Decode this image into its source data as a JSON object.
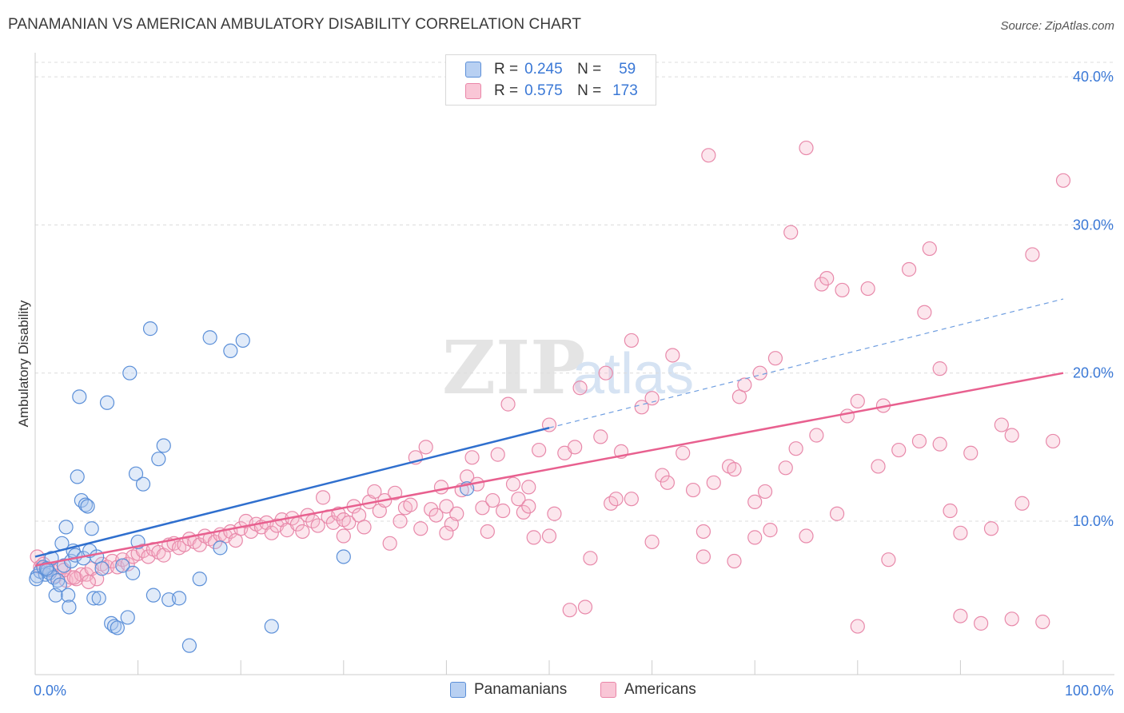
{
  "title": "PANAMANIAN VS AMERICAN AMBULATORY DISABILITY CORRELATION CHART",
  "source": "Source: ZipAtlas.com",
  "colors": {
    "blue": "#3a78d6",
    "blue_fill": "#a9c6ef",
    "pink": "#e8608f",
    "pink_fill": "#f7b8cc",
    "grid": "#dddddd"
  },
  "legend": {
    "rows": [
      {
        "r_label": "R =",
        "r_value": "0.245",
        "n_label": "N =",
        "n_value": "59"
      },
      {
        "r_label": "R =",
        "r_value": "0.575",
        "n_label": "N =",
        "n_value": "173"
      }
    ]
  },
  "bottom_legend": {
    "panamanians": "Panamanians",
    "americans": "Americans"
  },
  "chart_data": {
    "type": "scatter",
    "title": "PANAMANIAN VS AMERICAN AMBULATORY DISABILITY CORRELATION CHART",
    "xlabel": "",
    "ylabel": "Ambulatory Disability",
    "xlim": [
      0,
      100
    ],
    "ylim": [
      0,
      42
    ],
    "x_tick_labels": [
      "0.0%",
      "100.0%"
    ],
    "y_ticks": [
      10,
      20,
      30,
      40
    ],
    "y_tick_labels": [
      "10.0%",
      "20.0%",
      "30.0%",
      "40.0%"
    ],
    "watermark": "ZIPatlas",
    "series": [
      {
        "name": "Panamanians",
        "color": "#3a78d6",
        "r": 0.245,
        "n": 59,
        "trend": {
          "x0": 0,
          "y0": 7.6,
          "x1": 50,
          "y1": 16.3,
          "dashed_to_x": 100,
          "dashed_to_y": 25.0
        },
        "points": [
          [
            0.2,
            6.3
          ],
          [
            0.5,
            6.6
          ],
          [
            0.8,
            6.9
          ],
          [
            1.0,
            6.4
          ],
          [
            1.2,
            6.7
          ],
          [
            1.4,
            6.5
          ],
          [
            1.6,
            7.5
          ],
          [
            1.8,
            6.2
          ],
          [
            2.0,
            5.0
          ],
          [
            2.2,
            6.0
          ],
          [
            2.4,
            5.7
          ],
          [
            2.6,
            8.5
          ],
          [
            2.8,
            7.0
          ],
          [
            3.0,
            9.6
          ],
          [
            3.2,
            5.0
          ],
          [
            3.3,
            4.2
          ],
          [
            3.5,
            7.3
          ],
          [
            3.7,
            8.0
          ],
          [
            3.9,
            7.7
          ],
          [
            4.1,
            13.0
          ],
          [
            4.3,
            18.4
          ],
          [
            4.5,
            11.4
          ],
          [
            4.7,
            7.5
          ],
          [
            4.9,
            11.1
          ],
          [
            5.1,
            11.0
          ],
          [
            5.3,
            8.0
          ],
          [
            5.5,
            9.5
          ],
          [
            5.7,
            4.8
          ],
          [
            6.0,
            7.6
          ],
          [
            6.2,
            4.8
          ],
          [
            6.5,
            6.8
          ],
          [
            7.0,
            18.0
          ],
          [
            7.4,
            3.1
          ],
          [
            7.7,
            2.9
          ],
          [
            8.0,
            2.8
          ],
          [
            8.5,
            7.0
          ],
          [
            9.0,
            3.5
          ],
          [
            9.2,
            20.0
          ],
          [
            9.5,
            6.5
          ],
          [
            9.8,
            13.2
          ],
          [
            10.0,
            8.6
          ],
          [
            10.5,
            12.5
          ],
          [
            11.2,
            23.0
          ],
          [
            11.5,
            5.0
          ],
          [
            12.0,
            14.2
          ],
          [
            12.5,
            15.1
          ],
          [
            13.0,
            4.7
          ],
          [
            14.0,
            4.8
          ],
          [
            15.0,
            1.6
          ],
          [
            16.0,
            6.1
          ],
          [
            17.0,
            22.4
          ],
          [
            18.0,
            8.2
          ],
          [
            19.0,
            21.5
          ],
          [
            20.2,
            22.2
          ],
          [
            23.0,
            2.9
          ],
          [
            30.0,
            7.6
          ],
          [
            42.0,
            12.2
          ],
          [
            0.1,
            6.1
          ],
          [
            1.1,
            6.8
          ]
        ]
      },
      {
        "name": "Americans",
        "color": "#e8608f",
        "r": 0.575,
        "n": 173,
        "trend": {
          "x0": 0,
          "y0": 7.0,
          "x1": 100,
          "y1": 20.0
        },
        "points": [
          [
            0.2,
            7.6
          ],
          [
            0.5,
            6.9
          ],
          [
            0.8,
            7.1
          ],
          [
            1.2,
            6.8
          ],
          [
            1.6,
            6.7
          ],
          [
            2.0,
            6.3
          ],
          [
            2.5,
            6.9
          ],
          [
            3.0,
            6.0
          ],
          [
            3.5,
            6.2
          ],
          [
            4.0,
            6.1
          ],
          [
            4.5,
            6.4
          ],
          [
            5.0,
            6.4
          ],
          [
            5.5,
            6.8
          ],
          [
            6.0,
            6.1
          ],
          [
            6.5,
            7.1
          ],
          [
            7.0,
            6.9
          ],
          [
            7.5,
            7.3
          ],
          [
            8.0,
            6.9
          ],
          [
            8.5,
            7.4
          ],
          [
            9.0,
            7.1
          ],
          [
            9.5,
            7.6
          ],
          [
            10.0,
            7.8
          ],
          [
            10.5,
            8.0
          ],
          [
            11.0,
            7.6
          ],
          [
            11.5,
            8.1
          ],
          [
            12.0,
            7.9
          ],
          [
            12.5,
            7.7
          ],
          [
            13.0,
            8.4
          ],
          [
            13.5,
            8.5
          ],
          [
            14.0,
            8.2
          ],
          [
            14.5,
            8.4
          ],
          [
            15.0,
            8.8
          ],
          [
            15.5,
            8.6
          ],
          [
            16.0,
            8.4
          ],
          [
            16.5,
            9.0
          ],
          [
            17.0,
            8.8
          ],
          [
            17.5,
            8.6
          ],
          [
            18.0,
            9.1
          ],
          [
            18.5,
            9.0
          ],
          [
            19.0,
            9.3
          ],
          [
            19.5,
            8.7
          ],
          [
            20.0,
            9.5
          ],
          [
            20.5,
            10.0
          ],
          [
            21.0,
            9.3
          ],
          [
            21.5,
            9.8
          ],
          [
            22.0,
            9.6
          ],
          [
            22.5,
            9.9
          ],
          [
            23.0,
            9.2
          ],
          [
            23.5,
            9.7
          ],
          [
            24.0,
            10.1
          ],
          [
            24.5,
            9.4
          ],
          [
            25.0,
            10.2
          ],
          [
            25.5,
            9.8
          ],
          [
            26.0,
            9.3
          ],
          [
            26.5,
            10.4
          ],
          [
            27.0,
            10.0
          ],
          [
            27.5,
            9.7
          ],
          [
            28.0,
            11.6
          ],
          [
            28.5,
            10.3
          ],
          [
            29.0,
            9.9
          ],
          [
            29.5,
            10.5
          ],
          [
            30.0,
            10.1
          ],
          [
            30.5,
            9.9
          ],
          [
            31.0,
            11.0
          ],
          [
            31.5,
            10.4
          ],
          [
            32.0,
            9.6
          ],
          [
            32.5,
            11.3
          ],
          [
            33.0,
            12.0
          ],
          [
            33.5,
            10.7
          ],
          [
            34.0,
            11.4
          ],
          [
            34.5,
            8.5
          ],
          [
            35.0,
            11.9
          ],
          [
            35.5,
            10.0
          ],
          [
            36.0,
            10.9
          ],
          [
            36.5,
            11.1
          ],
          [
            37.0,
            14.3
          ],
          [
            37.5,
            9.5
          ],
          [
            38.0,
            15.0
          ],
          [
            38.5,
            10.8
          ],
          [
            39.0,
            10.4
          ],
          [
            39.5,
            12.3
          ],
          [
            40.0,
            11.0
          ],
          [
            40.5,
            9.8
          ],
          [
            41.0,
            10.5
          ],
          [
            41.5,
            12.1
          ],
          [
            42.0,
            13.0
          ],
          [
            42.5,
            14.3
          ],
          [
            43.0,
            12.5
          ],
          [
            43.5,
            10.9
          ],
          [
            44.0,
            9.3
          ],
          [
            44.5,
            11.4
          ],
          [
            45.0,
            14.5
          ],
          [
            45.5,
            10.7
          ],
          [
            46.0,
            17.9
          ],
          [
            46.5,
            12.5
          ],
          [
            47.0,
            11.5
          ],
          [
            47.5,
            10.6
          ],
          [
            48.0,
            11.0
          ],
          [
            48.5,
            8.9
          ],
          [
            49.0,
            14.8
          ],
          [
            50.0,
            16.5
          ],
          [
            50.5,
            10.5
          ],
          [
            51.5,
            14.6
          ],
          [
            52.0,
            4.0
          ],
          [
            52.5,
            15.0
          ],
          [
            53.0,
            19.0
          ],
          [
            53.5,
            4.2
          ],
          [
            54.0,
            7.5
          ],
          [
            55.0,
            15.7
          ],
          [
            55.5,
            20.0
          ],
          [
            56.0,
            11.2
          ],
          [
            56.5,
            11.5
          ],
          [
            57.0,
            14.7
          ],
          [
            58.0,
            22.2
          ],
          [
            59.0,
            17.7
          ],
          [
            60.0,
            18.3
          ],
          [
            61.0,
            13.1
          ],
          [
            61.5,
            12.6
          ],
          [
            62.0,
            21.2
          ],
          [
            63.0,
            14.6
          ],
          [
            64.0,
            12.1
          ],
          [
            65.0,
            9.3
          ],
          [
            65.5,
            34.7
          ],
          [
            66.0,
            12.6
          ],
          [
            67.5,
            13.7
          ],
          [
            68.0,
            7.3
          ],
          [
            68.5,
            18.4
          ],
          [
            69.0,
            19.2
          ],
          [
            70.0,
            11.3
          ],
          [
            70.5,
            20.0
          ],
          [
            71.0,
            12.0
          ],
          [
            71.5,
            9.4
          ],
          [
            72.0,
            21.0
          ],
          [
            73.0,
            13.6
          ],
          [
            73.5,
            29.5
          ],
          [
            74.0,
            14.9
          ],
          [
            75.0,
            35.2
          ],
          [
            76.0,
            15.8
          ],
          [
            76.5,
            26.0
          ],
          [
            77.0,
            26.4
          ],
          [
            78.0,
            10.5
          ],
          [
            78.5,
            25.6
          ],
          [
            79.0,
            17.1
          ],
          [
            80.0,
            18.1
          ],
          [
            81.0,
            25.7
          ],
          [
            82.0,
            13.7
          ],
          [
            82.5,
            17.8
          ],
          [
            83.0,
            7.4
          ],
          [
            84.0,
            14.8
          ],
          [
            85.0,
            27.0
          ],
          [
            86.0,
            15.4
          ],
          [
            86.5,
            24.1
          ],
          [
            87.0,
            28.4
          ],
          [
            88.0,
            15.2
          ],
          [
            89.0,
            10.7
          ],
          [
            90.0,
            9.2
          ],
          [
            91.0,
            14.6
          ],
          [
            92.0,
            3.1
          ],
          [
            93.0,
            9.5
          ],
          [
            94.0,
            16.5
          ],
          [
            95.0,
            15.8
          ],
          [
            96.0,
            11.2
          ],
          [
            97.0,
            28.0
          ],
          [
            98.0,
            3.2
          ],
          [
            99.0,
            15.4
          ],
          [
            100.0,
            33.0
          ],
          [
            30.0,
            9.0
          ],
          [
            40.0,
            9.2
          ],
          [
            50.0,
            9.0
          ],
          [
            60.0,
            8.6
          ],
          [
            65.0,
            7.6
          ],
          [
            70.0,
            8.9
          ],
          [
            75.0,
            9.0
          ],
          [
            80.0,
            2.9
          ],
          [
            90.0,
            3.6
          ],
          [
            95.0,
            3.4
          ],
          [
            48.0,
            12.3
          ],
          [
            58.0,
            11.5
          ],
          [
            68.0,
            13.5
          ],
          [
            88.0,
            20.3
          ],
          [
            2.8,
            6.7
          ],
          [
            3.8,
            6.2
          ],
          [
            5.2,
            5.9
          ]
        ]
      }
    ]
  }
}
